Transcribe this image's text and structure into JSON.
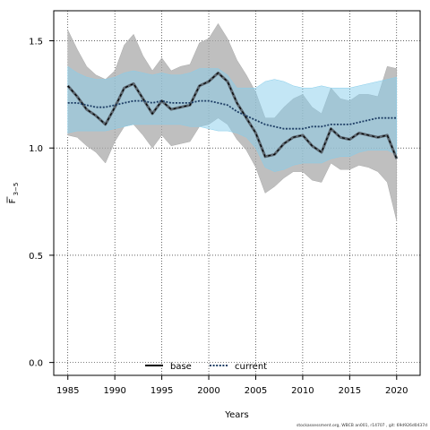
{
  "chart_data": {
    "type": "line",
    "xlabel": "Years",
    "ylabel_main": "F",
    "ylabel_sub": "3−5",
    "xlim": [
      1983.5,
      2022.5
    ],
    "ylim": [
      -0.06,
      1.64
    ],
    "x_ticks": [
      1985,
      1990,
      1995,
      2000,
      2005,
      2010,
      2015,
      2020
    ],
    "y_ticks": [
      0.0,
      0.5,
      1.0,
      1.5
    ],
    "y_tick_labels": [
      "0.0",
      "0.5",
      "1.0",
      "1.5"
    ],
    "grid": true,
    "legend_position": "bottom-center",
    "x": [
      1985,
      1986,
      1987,
      1988,
      1989,
      1990,
      1991,
      1992,
      1993,
      1994,
      1995,
      1996,
      1997,
      1998,
      1999,
      2000,
      2001,
      2002,
      2003,
      2004,
      2005,
      2006,
      2007,
      2008,
      2009,
      2010,
      2011,
      2012,
      2013,
      2014,
      2015,
      2016,
      2017,
      2018,
      2019,
      2020
    ],
    "series": [
      {
        "name": "base",
        "color": "#000000",
        "line_style": "solid",
        "band_color": "#a9a9a9",
        "values": [
          1.29,
          1.24,
          1.18,
          1.15,
          1.11,
          1.19,
          1.28,
          1.3,
          1.23,
          1.16,
          1.22,
          1.18,
          1.19,
          1.2,
          1.29,
          1.31,
          1.35,
          1.31,
          1.21,
          1.14,
          1.07,
          0.96,
          0.97,
          1.02,
          1.05,
          1.06,
          1.01,
          0.98,
          1.09,
          1.05,
          1.04,
          1.07,
          1.06,
          1.05,
          1.06,
          0.95
        ],
        "lower": [
          1.06,
          1.05,
          1.01,
          0.98,
          0.93,
          1.03,
          1.1,
          1.11,
          1.06,
          1.0,
          1.06,
          1.01,
          1.02,
          1.03,
          1.1,
          1.11,
          1.14,
          1.11,
          1.04,
          0.99,
          0.91,
          0.79,
          0.82,
          0.86,
          0.89,
          0.89,
          0.85,
          0.84,
          0.93,
          0.9,
          0.9,
          0.92,
          0.91,
          0.89,
          0.84,
          0.66
        ],
        "upper": [
          1.55,
          1.46,
          1.38,
          1.34,
          1.32,
          1.36,
          1.48,
          1.53,
          1.43,
          1.36,
          1.42,
          1.36,
          1.38,
          1.39,
          1.49,
          1.51,
          1.58,
          1.51,
          1.41,
          1.34,
          1.26,
          1.14,
          1.14,
          1.19,
          1.23,
          1.25,
          1.19,
          1.16,
          1.28,
          1.23,
          1.22,
          1.25,
          1.25,
          1.24,
          1.38,
          1.37
        ]
      },
      {
        "name": "current",
        "color": "#1f3f66",
        "line_style": "dotted",
        "band_color": "#87ceeb",
        "values": [
          1.21,
          1.21,
          1.2,
          1.19,
          1.19,
          1.2,
          1.21,
          1.22,
          1.22,
          1.21,
          1.22,
          1.21,
          1.21,
          1.21,
          1.22,
          1.22,
          1.21,
          1.2,
          1.17,
          1.15,
          1.13,
          1.11,
          1.1,
          1.09,
          1.09,
          1.09,
          1.1,
          1.1,
          1.11,
          1.11,
          1.11,
          1.12,
          1.13,
          1.14,
          1.14,
          1.14
        ],
        "lower": [
          1.07,
          1.08,
          1.08,
          1.08,
          1.08,
          1.09,
          1.1,
          1.11,
          1.11,
          1.11,
          1.11,
          1.11,
          1.11,
          1.1,
          1.1,
          1.09,
          1.08,
          1.08,
          1.07,
          1.05,
          1.0,
          0.91,
          0.89,
          0.9,
          0.92,
          0.93,
          0.93,
          0.93,
          0.95,
          0.96,
          0.96,
          0.98,
          0.99,
          0.99,
          0.99,
          0.97
        ],
        "upper": [
          1.38,
          1.35,
          1.33,
          1.32,
          1.32,
          1.33,
          1.35,
          1.36,
          1.35,
          1.34,
          1.35,
          1.34,
          1.34,
          1.35,
          1.37,
          1.37,
          1.37,
          1.34,
          1.28,
          1.28,
          1.28,
          1.31,
          1.32,
          1.31,
          1.29,
          1.28,
          1.28,
          1.29,
          1.28,
          1.28,
          1.28,
          1.29,
          1.3,
          1.31,
          1.32,
          1.33
        ]
      }
    ]
  },
  "footer": {
    "text": "stockassessment.org, WBCB an001, r14707 , git: 69d926d0437d"
  }
}
